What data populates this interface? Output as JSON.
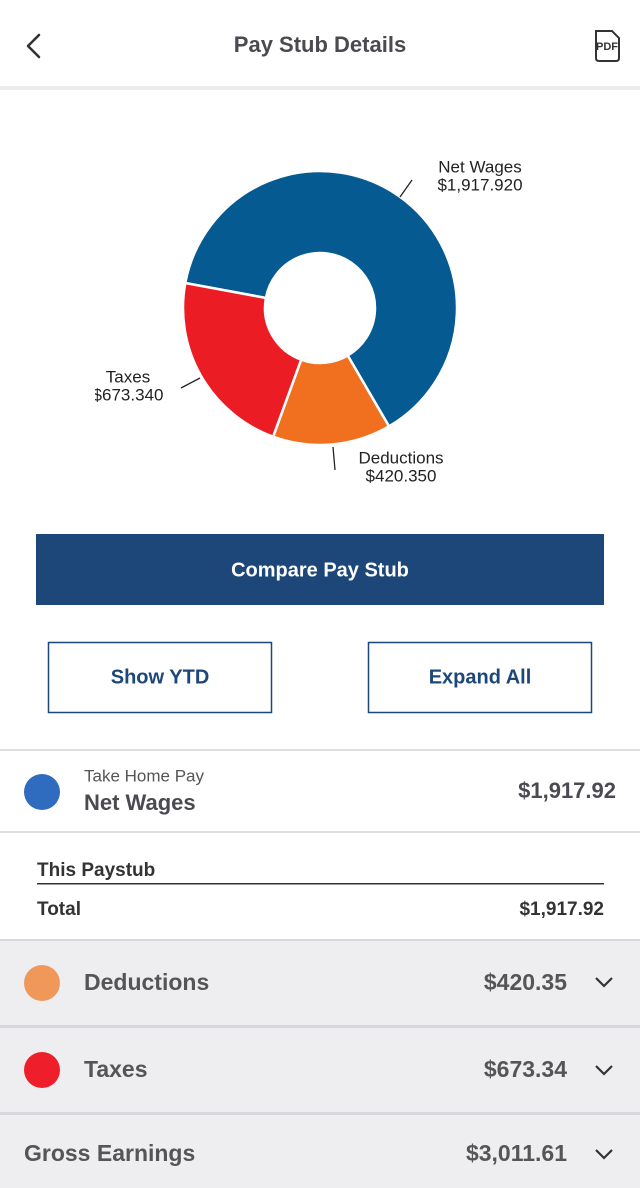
{
  "header": {
    "title": "Pay Stub Details",
    "pdf_label": "PDF"
  },
  "chart_data": {
    "type": "pie",
    "categories": [
      "Net Wages",
      "Deductions",
      "Taxes"
    ],
    "values": [
      1917.92,
      420.35,
      673.34
    ],
    "value_labels": [
      "$1,917.920",
      "$420.350",
      "$673.340"
    ],
    "colors": [
      "#055a92",
      "#f07020",
      "#ec1c24"
    ]
  },
  "buttons": {
    "compare": "Compare Pay Stub",
    "show_ytd": "Show YTD",
    "expand_all": "Expand All"
  },
  "net_wages": {
    "caption": "Take Home Pay",
    "name": "Net Wages",
    "amount": "$1,917.92",
    "this_paystub": "This Paystub",
    "total_label": "Total",
    "total": "$1,917.92"
  },
  "rows": [
    {
      "name": "Deductions",
      "amount": "$420.35"
    },
    {
      "name": "Taxes",
      "amount": "$673.34"
    },
    {
      "name": "Gross Earnings",
      "amount": "$3,011.61"
    }
  ]
}
